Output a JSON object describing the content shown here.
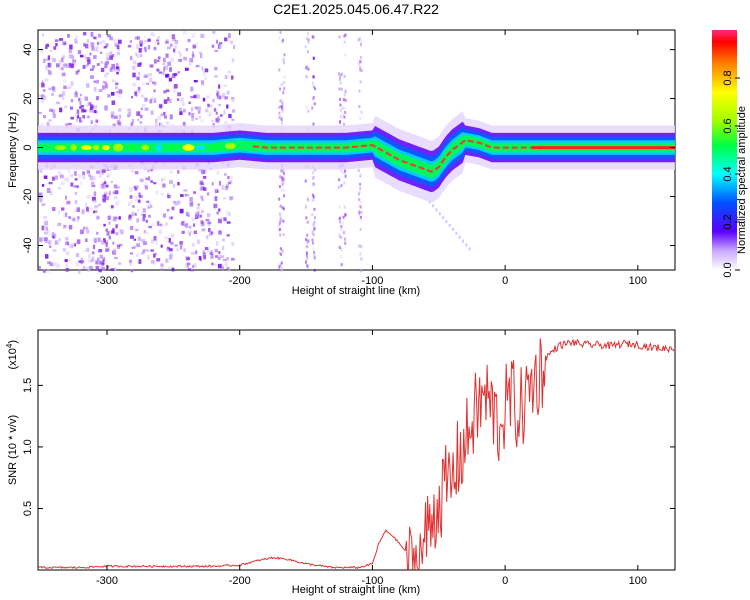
{
  "title": "C2E1.2025.045.06.47.R22",
  "chart_data": [
    {
      "type": "heatmap",
      "xlabel": "Height of straight line (km)",
      "ylabel": "Frequency (Hz)",
      "xlim": [
        -352,
        128
      ],
      "ylim": [
        -50,
        48
      ],
      "xticks": [
        -300,
        -200,
        -100,
        0,
        100
      ],
      "yticks": [
        -40,
        -20,
        0,
        20,
        40
      ],
      "colorbar": {
        "label": "Normalized spectral amplitude",
        "range": [
          0,
          1
        ],
        "ticks": [
          0.0,
          0.2,
          0.4,
          0.6,
          0.8
        ],
        "tick_labels": [
          "0.0",
          "0.2",
          "0.4",
          "0.6",
          "0.8"
        ]
      },
      "ridge_x": [
        -352,
        -320,
        -300,
        -280,
        -260,
        -240,
        -220,
        -200,
        -180,
        -160,
        -140,
        -120,
        -100,
        -90,
        -80,
        -70,
        -60,
        -55,
        -50,
        -45,
        -40,
        -30,
        -20,
        -10,
        0,
        20,
        60,
        100,
        128
      ],
      "ridge_y": [
        0,
        0,
        0,
        0,
        0,
        0,
        0,
        1,
        0,
        0,
        0,
        0,
        1,
        -2,
        -5,
        -7,
        -9,
        -10,
        -8,
        -4,
        -1,
        3,
        2,
        0,
        0,
        0,
        0,
        0,
        0
      ],
      "colors": {
        "line": "#e03030",
        "noise": "#8a2be2"
      }
    },
    {
      "type": "line",
      "xlabel": "Height of straight line (km)",
      "ylabel": "SNR (10 * v/v)",
      "multiplier_label": "(x10",
      "multiplier_exp": "4",
      "multiplier_close": ")",
      "xlim": [
        -352,
        128
      ],
      "ylim": [
        0,
        1.95
      ],
      "xticks": [
        -300,
        -200,
        -100,
        0,
        100
      ],
      "yticks": [
        0.5,
        1.0,
        1.5
      ],
      "ytick_labels": [
        "0.5",
        "1.0",
        "1.5"
      ],
      "series": [
        {
          "x": [
            -352,
            -320,
            -300,
            -280,
            -250,
            -220,
            -200,
            -185,
            -175,
            -165,
            -150,
            -130,
            -110,
            -100,
            -95,
            -90,
            -85,
            -80,
            -75,
            -70,
            -65,
            -60,
            -55,
            -50,
            -45,
            -40,
            -35,
            -30,
            -25,
            -20,
            -15,
            -10,
            -5,
            0,
            5,
            10,
            15,
            20,
            25,
            30,
            40,
            50,
            60,
            70,
            80,
            90,
            100,
            110,
            120,
            128
          ],
          "y": [
            0.02,
            0.02,
            0.03,
            0.03,
            0.03,
            0.03,
            0.04,
            0.08,
            0.1,
            0.09,
            0.05,
            0.02,
            0.02,
            0.05,
            0.22,
            0.32,
            0.28,
            0.22,
            0.15,
            0.04,
            0.1,
            0.3,
            0.45,
            0.6,
            0.7,
            0.75,
            0.95,
            1.05,
            1.25,
            1.35,
            1.45,
            1.35,
            1.2,
            1.35,
            1.45,
            1.3,
            1.4,
            1.55,
            1.62,
            1.72,
            1.82,
            1.85,
            1.83,
            1.83,
            1.82,
            1.84,
            1.83,
            1.81,
            1.8,
            1.8
          ],
          "noise_from_x": -75
        }
      ],
      "colors": {
        "line": "#e03030"
      }
    }
  ]
}
